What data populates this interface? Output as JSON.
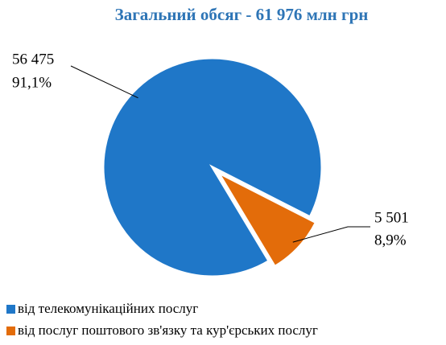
{
  "chart_data": {
    "type": "pie",
    "title": "Загальний обсяг - 61 976 млн грн",
    "categories": [
      "від телекомунікаційних послуг",
      "від послуг поштового зв'язку та кур'єрських послуг"
    ],
    "values": [
      56475,
      5501
    ],
    "value_labels": [
      "56 475",
      "5 501"
    ],
    "percent_labels": [
      "91,1%",
      "8,9%"
    ],
    "colors": [
      "#1f77c8",
      "#e36c0a"
    ],
    "legend": "bottom"
  }
}
